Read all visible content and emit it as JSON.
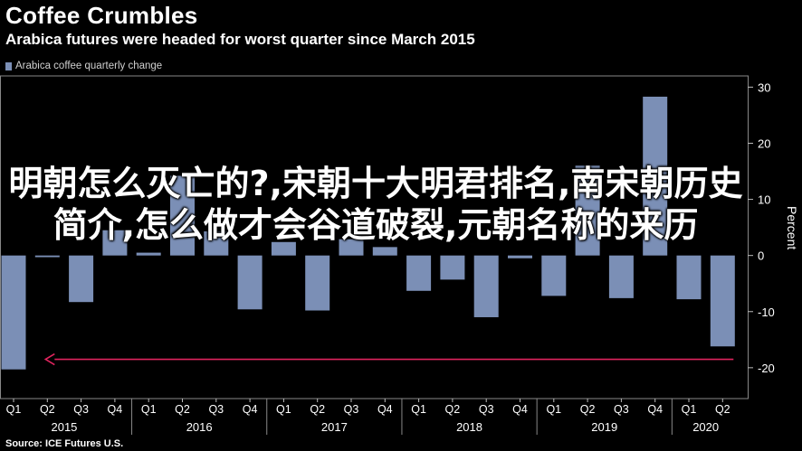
{
  "header": {
    "title": "Coffee Crumbles",
    "subtitle": "Arabica futures were headed for worst quarter since March 2015"
  },
  "legend": {
    "label": "Arabica coffee quarterly change",
    "color": "#7b8fb6"
  },
  "source": "Source: ICE Futures U.S.",
  "overlay_text": "明朝怎么灭亡的?,宋朝十大明君排名,南宋朝历史简介,怎么做才会谷道破裂,元朝名称的来历",
  "colors": {
    "bar": "#7b8fb6",
    "arrow": "#e0245e",
    "axis": "#bbbbbb",
    "grid": "#444444",
    "background": "#000000"
  },
  "chart_data": {
    "type": "bar",
    "categories": [
      "Q1",
      "Q2",
      "Q3",
      "Q4",
      "Q1",
      "Q2",
      "Q3",
      "Q4",
      "Q1",
      "Q2",
      "Q3",
      "Q4",
      "Q1",
      "Q2",
      "Q3",
      "Q4",
      "Q1",
      "Q2",
      "Q3",
      "Q4",
      "Q1",
      "Q2"
    ],
    "years": [
      {
        "label": "2015",
        "start": 0,
        "end": 3
      },
      {
        "label": "2016",
        "start": 4,
        "end": 7
      },
      {
        "label": "2017",
        "start": 8,
        "end": 11
      },
      {
        "label": "2018",
        "start": 12,
        "end": 15
      },
      {
        "label": "2019",
        "start": 16,
        "end": 19
      },
      {
        "label": "2020",
        "start": 20,
        "end": 21
      }
    ],
    "series": [
      {
        "name": "Arabica coffee quarterly change",
        "values": [
          -20.3,
          -0.3,
          -8.3,
          4.5,
          0.5,
          14.2,
          4.3,
          -9.6,
          2.4,
          -9.8,
          2.9,
          1.5,
          -6.3,
          -4.3,
          -11.0,
          -0.5,
          -7.2,
          16.0,
          -7.6,
          28.3,
          -7.8,
          -16.2
        ]
      }
    ],
    "y_ticks": [
      30,
      20,
      10,
      0,
      -10,
      -20
    ],
    "ylim": [
      -25.5,
      32
    ],
    "ylabel": "Percent",
    "xlabel": "",
    "grid": false,
    "annotation": {
      "type": "arrow",
      "from_index": 21,
      "to_index": 1,
      "y": -18.5
    }
  }
}
